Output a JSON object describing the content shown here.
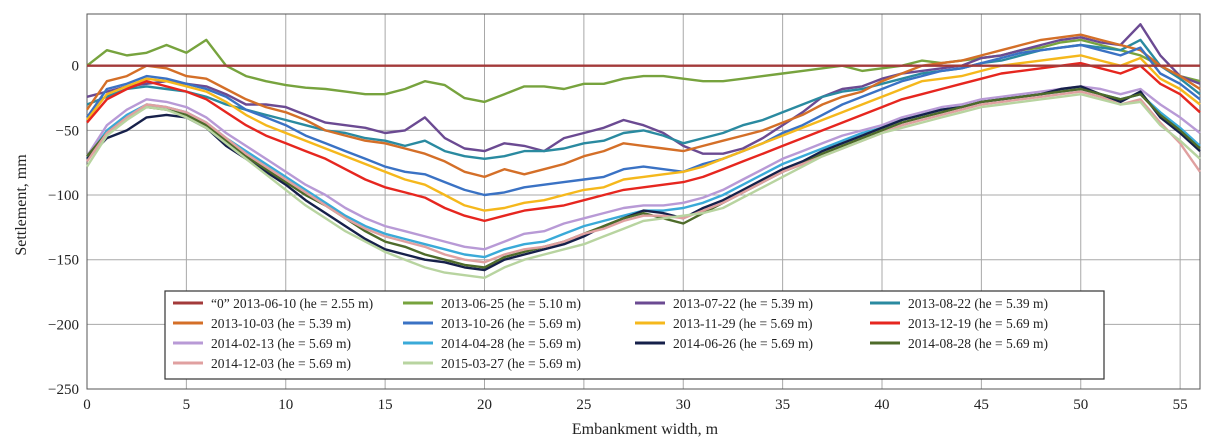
{
  "chart_data": {
    "type": "line",
    "xlabel": "Embankment width, m",
    "ylabel": "Settlement, mm",
    "xlim": [
      0,
      56
    ],
    "ylim": [
      -250,
      40
    ],
    "x_ticks": [
      0,
      5,
      10,
      15,
      20,
      25,
      30,
      35,
      40,
      45,
      50,
      55
    ],
    "y_ticks": [
      0,
      -50,
      -100,
      -150,
      -200,
      -250
    ],
    "grid": true,
    "legend_position": "bottom-center",
    "x": [
      0,
      1,
      2,
      3,
      4,
      5,
      6,
      7,
      8,
      9,
      10,
      11,
      12,
      13,
      14,
      15,
      16,
      17,
      18,
      19,
      20,
      21,
      22,
      23,
      24,
      25,
      26,
      27,
      28,
      29,
      30,
      31,
      32,
      33,
      34,
      35,
      36,
      37,
      38,
      39,
      40,
      41,
      42,
      43,
      44,
      45,
      46,
      47,
      48,
      49,
      50,
      51,
      52,
      53,
      54,
      55,
      56
    ],
    "series": [
      {
        "name": "“0” 2013-06-10 (he = 2.55 m)",
        "color": "#a33a3a",
        "values": [
          0,
          0,
          0,
          0,
          0,
          0,
          0,
          0,
          0,
          0,
          0,
          0,
          0,
          0,
          0,
          0,
          0,
          0,
          0,
          0,
          0,
          0,
          0,
          0,
          0,
          0,
          0,
          0,
          0,
          0,
          0,
          0,
          0,
          0,
          0,
          0,
          0,
          0,
          0,
          0,
          0,
          0,
          0,
          0,
          0,
          0,
          0,
          0,
          0,
          0,
          0,
          0,
          0,
          0,
          0,
          0,
          0
        ]
      },
      {
        "name": "2013-06-25 (he = 5.10 m)",
        "color": "#77a33e",
        "values": [
          0,
          12,
          8,
          10,
          16,
          10,
          20,
          0,
          -8,
          -12,
          -15,
          -17,
          -18,
          -20,
          -22,
          -22,
          -18,
          -12,
          -15,
          -25,
          -28,
          -22,
          -16,
          -16,
          -18,
          -14,
          -14,
          -10,
          -8,
          -8,
          -10,
          -12,
          -12,
          -10,
          -8,
          -6,
          -4,
          -2,
          0,
          -4,
          -2,
          0,
          4,
          2,
          4,
          6,
          8,
          12,
          14,
          18,
          20,
          16,
          12,
          8,
          0,
          -8,
          -12
        ]
      },
      {
        "name": "2013-07-22 (he = 5.39 m)",
        "color": "#6b4a92",
        "values": [
          -24,
          -20,
          -16,
          -14,
          -12,
          -14,
          -16,
          -22,
          -30,
          -30,
          -32,
          -38,
          -44,
          -46,
          -48,
          -52,
          -50,
          -40,
          -56,
          -64,
          -66,
          -60,
          -62,
          -66,
          -56,
          -52,
          -48,
          -42,
          -46,
          -52,
          -62,
          -68,
          -68,
          -64,
          -56,
          -46,
          -36,
          -24,
          -18,
          -16,
          -10,
          -6,
          -4,
          -2,
          0,
          6,
          8,
          12,
          16,
          20,
          22,
          18,
          16,
          32,
          8,
          -8,
          -14
        ]
      },
      {
        "name": "2013-08-22 (he = 5.39 m)",
        "color": "#2a8aa0",
        "values": [
          -30,
          -24,
          -18,
          -16,
          -18,
          -20,
          -24,
          -30,
          -34,
          -38,
          -42,
          -46,
          -50,
          -52,
          -56,
          -58,
          -62,
          -58,
          -66,
          -70,
          -72,
          -70,
          -66,
          -66,
          -64,
          -60,
          -58,
          -52,
          -50,
          -54,
          -60,
          -56,
          -52,
          -46,
          -42,
          -36,
          -30,
          -24,
          -20,
          -18,
          -14,
          -10,
          -6,
          -4,
          -2,
          2,
          4,
          8,
          12,
          14,
          16,
          14,
          12,
          20,
          0,
          -10,
          -22
        ]
      },
      {
        "name": "2013-10-03 (he = 5.39 m)",
        "color": "#d46f28",
        "values": [
          -34,
          -12,
          -8,
          0,
          -2,
          -8,
          -10,
          -18,
          -26,
          -32,
          -36,
          -42,
          -50,
          -54,
          -58,
          -60,
          -64,
          -68,
          -74,
          -82,
          -86,
          -80,
          -84,
          -80,
          -76,
          -70,
          -66,
          -60,
          -62,
          -64,
          -66,
          -62,
          -58,
          -54,
          -50,
          -44,
          -38,
          -30,
          -24,
          -20,
          -12,
          -6,
          0,
          2,
          4,
          8,
          12,
          16,
          20,
          22,
          24,
          20,
          16,
          12,
          0,
          -8,
          -18
        ]
      },
      {
        "name": "2013-10-26 (he = 5.69 m)",
        "color": "#3a72c4",
        "values": [
          -40,
          -18,
          -14,
          -8,
          -10,
          -14,
          -18,
          -24,
          -34,
          -40,
          -46,
          -54,
          -60,
          -66,
          -72,
          -78,
          -82,
          -84,
          -90,
          -96,
          -100,
          -98,
          -94,
          -92,
          -90,
          -88,
          -86,
          -80,
          -78,
          -80,
          -82,
          -76,
          -72,
          -66,
          -60,
          -52,
          -46,
          -38,
          -30,
          -24,
          -18,
          -12,
          -8,
          -4,
          -2,
          2,
          6,
          10,
          12,
          14,
          16,
          12,
          8,
          14,
          -6,
          -14,
          -26
        ]
      },
      {
        "name": "2013-11-29 (he = 5.69 m)",
        "color": "#f5b81c",
        "values": [
          -42,
          -22,
          -16,
          -10,
          -12,
          -16,
          -20,
          -28,
          -38,
          -46,
          -52,
          -58,
          -64,
          -70,
          -76,
          -82,
          -88,
          -92,
          -100,
          -108,
          -112,
          -110,
          -106,
          -104,
          -100,
          -96,
          -94,
          -88,
          -86,
          -84,
          -82,
          -78,
          -72,
          -66,
          -60,
          -54,
          -48,
          -42,
          -36,
          -30,
          -24,
          -18,
          -12,
          -10,
          -8,
          -4,
          0,
          2,
          4,
          6,
          8,
          4,
          0,
          6,
          -10,
          -18,
          -30
        ]
      },
      {
        "name": "2013-12-19 (he = 5.69 m)",
        "color": "#e6261f",
        "values": [
          -44,
          -26,
          -18,
          -12,
          -16,
          -20,
          -26,
          -36,
          -46,
          -54,
          -60,
          -66,
          -72,
          -80,
          -88,
          -94,
          -98,
          -102,
          -110,
          -116,
          -120,
          -116,
          -112,
          -110,
          -108,
          -104,
          -100,
          -96,
          -94,
          -92,
          -90,
          -86,
          -80,
          -74,
          -68,
          -62,
          -56,
          -50,
          -44,
          -38,
          -32,
          -26,
          -22,
          -18,
          -14,
          -10,
          -6,
          -4,
          -2,
          0,
          2,
          -2,
          -6,
          0,
          -14,
          -22,
          -36
        ]
      },
      {
        "name": "2014-02-13 (he = 5.69 m)",
        "color": "#b89ad6",
        "values": [
          -70,
          -46,
          -34,
          -26,
          -28,
          -32,
          -40,
          -52,
          -62,
          -72,
          -82,
          -92,
          -100,
          -110,
          -118,
          -124,
          -128,
          -132,
          -136,
          -140,
          -142,
          -136,
          -130,
          -128,
          -122,
          -118,
          -114,
          -110,
          -108,
          -108,
          -106,
          -102,
          -96,
          -88,
          -80,
          -72,
          -66,
          -60,
          -54,
          -50,
          -46,
          -40,
          -36,
          -32,
          -30,
          -26,
          -24,
          -22,
          -20,
          -18,
          -16,
          -18,
          -22,
          -18,
          -30,
          -40,
          -52
        ]
      },
      {
        "name": "2014-04-28 (he = 5.69 m)",
        "color": "#3aaad8",
        "values": [
          -72,
          -50,
          -38,
          -30,
          -32,
          -36,
          -44,
          -56,
          -66,
          -76,
          -86,
          -96,
          -106,
          -116,
          -124,
          -130,
          -134,
          -138,
          -142,
          -146,
          -148,
          -142,
          -138,
          -136,
          -130,
          -124,
          -120,
          -116,
          -112,
          -112,
          -110,
          -106,
          -100,
          -92,
          -84,
          -76,
          -70,
          -64,
          -58,
          -52,
          -48,
          -42,
          -38,
          -34,
          -32,
          -28,
          -26,
          -24,
          -22,
          -20,
          -18,
          -22,
          -26,
          -22,
          -36,
          -48,
          -62
        ]
      },
      {
        "name": "2014-06-26 (he = 5.69 m)",
        "color": "#16204a",
        "values": [
          -72,
          -56,
          -50,
          -40,
          -38,
          -40,
          -48,
          -62,
          -72,
          -82,
          -92,
          -104,
          -114,
          -124,
          -134,
          -142,
          -146,
          -150,
          -152,
          -156,
          -158,
          -150,
          -146,
          -142,
          -138,
          -132,
          -124,
          -118,
          -112,
          -114,
          -118,
          -110,
          -104,
          -96,
          -88,
          -80,
          -74,
          -66,
          -60,
          -54,
          -48,
          -42,
          -38,
          -34,
          -32,
          -28,
          -26,
          -24,
          -22,
          -18,
          -16,
          -22,
          -28,
          -20,
          -40,
          -52,
          -66
        ]
      },
      {
        "name": "2014-08-28 (he = 5.69 m)",
        "color": "#4e6b2a",
        "values": [
          -70,
          -52,
          -40,
          -32,
          -34,
          -38,
          -46,
          -58,
          -70,
          -80,
          -90,
          -100,
          -108,
          -118,
          -128,
          -136,
          -140,
          -146,
          -150,
          -154,
          -156,
          -148,
          -144,
          -140,
          -136,
          -130,
          -124,
          -118,
          -114,
          -118,
          -122,
          -114,
          -106,
          -98,
          -90,
          -82,
          -76,
          -68,
          -62,
          -56,
          -50,
          -44,
          -40,
          -36,
          -32,
          -28,
          -26,
          -24,
          -22,
          -20,
          -18,
          -22,
          -26,
          -22,
          -38,
          -50,
          -64
        ]
      },
      {
        "name": "2014-12-03 (he = 5.69 m)",
        "color": "#e0a0a0",
        "values": [
          -74,
          -52,
          -40,
          -30,
          -32,
          -36,
          -44,
          -56,
          -68,
          -78,
          -88,
          -98,
          -108,
          -118,
          -126,
          -132,
          -136,
          -140,
          -146,
          -150,
          -152,
          -146,
          -142,
          -140,
          -136,
          -130,
          -126,
          -120,
          -116,
          -116,
          -118,
          -112,
          -106,
          -98,
          -90,
          -82,
          -76,
          -70,
          -64,
          -58,
          -52,
          -46,
          -42,
          -38,
          -34,
          -30,
          -28,
          -26,
          -24,
          -22,
          -20,
          -24,
          -30,
          -26,
          -44,
          -60,
          -82
        ]
      },
      {
        "name": "2015-03-27 (he = 5.69 m)",
        "color": "#b8d4a0",
        "values": [
          -78,
          -54,
          -42,
          -32,
          -34,
          -40,
          -48,
          -60,
          -72,
          -84,
          -96,
          -108,
          -118,
          -128,
          -136,
          -144,
          -150,
          -156,
          -160,
          -162,
          -164,
          -156,
          -150,
          -146,
          -142,
          -138,
          -132,
          -126,
          -120,
          -118,
          -116,
          -114,
          -110,
          -102,
          -94,
          -86,
          -78,
          -70,
          -64,
          -58,
          -52,
          -48,
          -44,
          -40,
          -36,
          -32,
          -30,
          -28,
          -26,
          -24,
          -22,
          -26,
          -30,
          -28,
          -46,
          -58,
          -72
        ]
      }
    ]
  }
}
